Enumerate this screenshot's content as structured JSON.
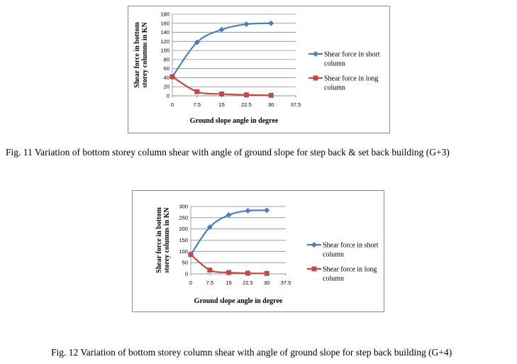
{
  "chart_data": [
    {
      "type": "line",
      "x": [
        0,
        7.5,
        15,
        22.5,
        30
      ],
      "x_ticks": [
        "0",
        "7.5",
        "15",
        "22.5",
        "30",
        "37.5"
      ],
      "xlim": [
        0,
        37.5
      ],
      "y_ticks": [
        "0",
        "20",
        "40",
        "60",
        "80",
        "100",
        "120",
        "140",
        "160",
        "180"
      ],
      "ylim": [
        0,
        180
      ],
      "xlabel": "Ground slope angle in degree",
      "ylabel_lines": [
        "Shear force in bottom",
        "storey columns in KN"
      ],
      "grid": "horizontal",
      "legend_position": "right",
      "series": [
        {
          "name_lines": [
            "Shear force in short",
            "column"
          ],
          "color": "#4a7ebb",
          "marker": "diamond",
          "values": [
            42,
            118,
            146,
            158,
            160
          ]
        },
        {
          "name_lines": [
            "Shear force in long",
            "column"
          ],
          "color": "#be4b48",
          "marker": "square",
          "values": [
            42,
            9,
            4,
            2,
            1
          ]
        }
      ],
      "caption": "Fig. 11 Variation of bottom storey column shear with angle of ground slope for step back & set back building (G+3)"
    },
    {
      "type": "line",
      "x": [
        0,
        7.5,
        15,
        22.5,
        30
      ],
      "x_ticks": [
        "0",
        "7.5",
        "15",
        "22.5",
        "30",
        "37.5"
      ],
      "xlim": [
        0,
        37.5
      ],
      "y_ticks": [
        "0",
        "50",
        "100",
        "150",
        "200",
        "250",
        "300"
      ],
      "ylim": [
        0,
        300
      ],
      "xlabel": "Ground slope angle in degree",
      "ylabel_lines": [
        "Shear force in bottom",
        "storey columns in KN"
      ],
      "grid": "horizontal",
      "legend_position": "right",
      "series": [
        {
          "name_lines": [
            "Shear force in short",
            "column"
          ],
          "color": "#4a7ebb",
          "marker": "diamond",
          "values": [
            86,
            208,
            262,
            281,
            283
          ]
        },
        {
          "name_lines": [
            "Shear force in long",
            "column"
          ],
          "color": "#be4b48",
          "marker": "square",
          "values": [
            86,
            17,
            6,
            3,
            2
          ]
        }
      ],
      "caption": "Fig. 12 Variation of bottom storey column shear with angle of ground slope for step back building (G+4)"
    }
  ]
}
